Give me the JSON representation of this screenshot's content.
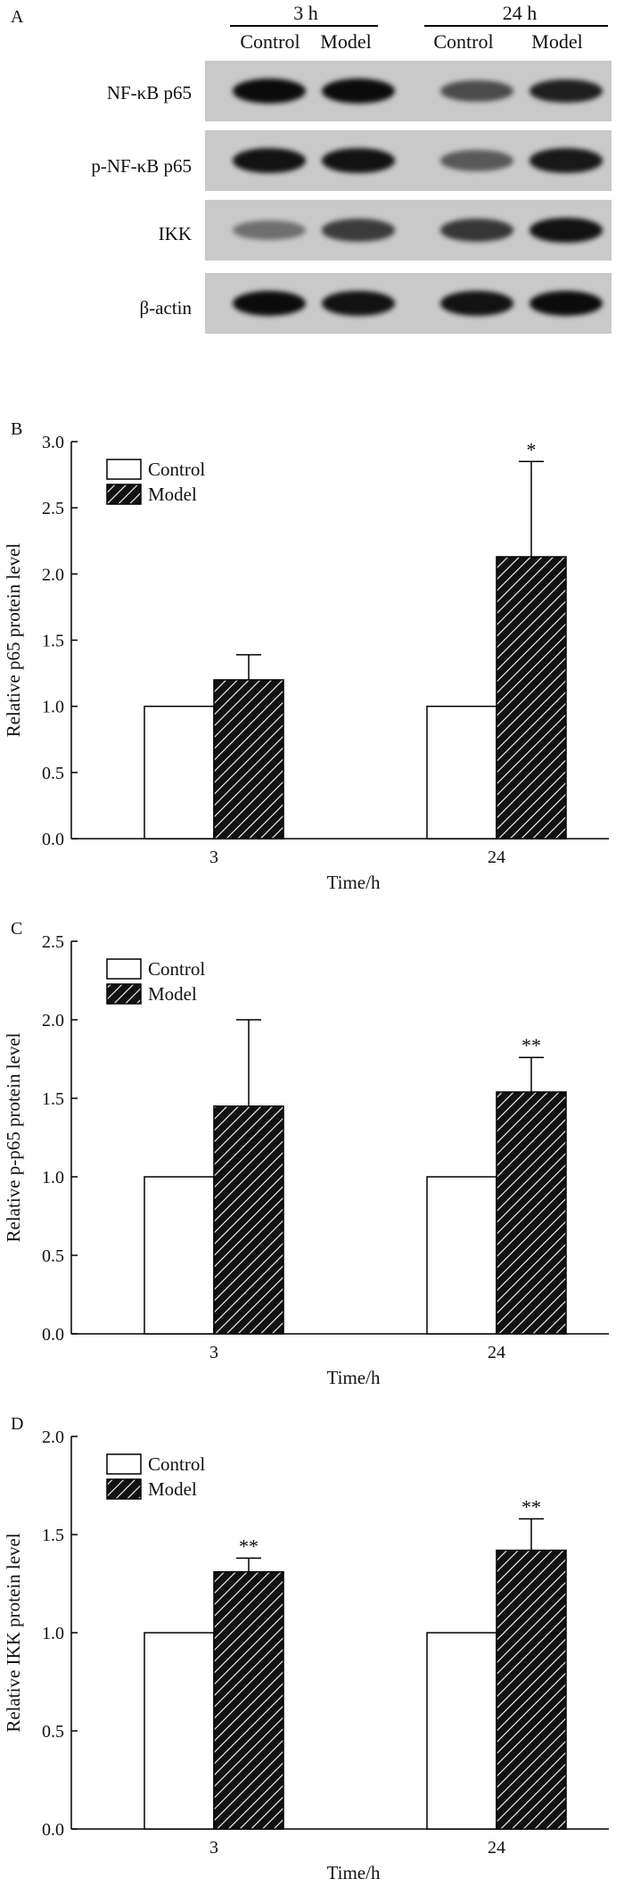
{
  "blot": {
    "panel_letter": "A",
    "time_groups": [
      "3 h",
      "24 h"
    ],
    "lane_labels": [
      "Control",
      "Model",
      "Control",
      "Model"
    ],
    "rows": [
      {
        "label": "NF-κB p65",
        "intensity": [
          1.0,
          1.0,
          0.55,
          0.85
        ]
      },
      {
        "label": "p-NF-κB p65",
        "intensity": [
          0.95,
          0.95,
          0.45,
          0.9
        ]
      },
      {
        "label": "IKK",
        "intensity": [
          0.3,
          0.65,
          0.7,
          0.95
        ]
      },
      {
        "label": "β-actin",
        "intensity": [
          1.0,
          0.95,
          0.95,
          1.0
        ]
      }
    ]
  },
  "chart_data": [
    {
      "panel": "B",
      "type": "bar",
      "categories": [
        "3",
        "24"
      ],
      "series": [
        {
          "name": "Control",
          "values": [
            1.0,
            1.0
          ],
          "errors": [
            0,
            0
          ]
        },
        {
          "name": "Model",
          "values": [
            1.2,
            2.13
          ],
          "errors": [
            0.19,
            0.72
          ]
        }
      ],
      "annotations": [
        "",
        "*"
      ],
      "xlabel": "Time/h",
      "ylabel": "Relative p65 protein level",
      "ylim": [
        0,
        3.0
      ],
      "yticks": [
        "0.0",
        "0.5",
        "1.0",
        "1.5",
        "2.0",
        "2.5",
        "3.0"
      ]
    },
    {
      "panel": "C",
      "type": "bar",
      "categories": [
        "3",
        "24"
      ],
      "series": [
        {
          "name": "Control",
          "values": [
            1.0,
            1.0
          ],
          "errors": [
            0,
            0
          ]
        },
        {
          "name": "Model",
          "values": [
            1.45,
            1.54
          ],
          "errors": [
            0.55,
            0.22
          ]
        }
      ],
      "annotations": [
        "",
        "**"
      ],
      "xlabel": "Time/h",
      "ylabel": "Relative p-p65 protein level",
      "ylim": [
        0,
        2.5
      ],
      "yticks": [
        "0.0",
        "0.5",
        "1.0",
        "1.5",
        "2.0",
        "2.5"
      ]
    },
    {
      "panel": "D",
      "type": "bar",
      "categories": [
        "3",
        "24"
      ],
      "series": [
        {
          "name": "Control",
          "values": [
            1.0,
            1.0
          ],
          "errors": [
            0,
            0
          ]
        },
        {
          "name": "Model",
          "values": [
            1.31,
            1.42
          ],
          "errors": [
            0.07,
            0.16
          ]
        }
      ],
      "annotations": [
        "**",
        "**"
      ],
      "xlabel": "Time/h",
      "ylabel": "Relative IKK protein level",
      "ylim": [
        0,
        2.0
      ],
      "yticks": [
        "0.0",
        "0.5",
        "1.0",
        "1.5",
        "2.0"
      ]
    }
  ]
}
